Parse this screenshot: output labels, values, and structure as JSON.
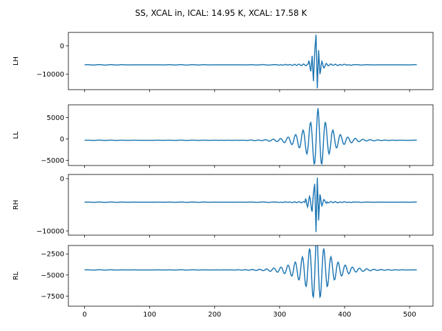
{
  "title": "SS, XCAL in, ICAL: 14.95 K, XCAL: 17.58 K",
  "chart_data": [
    {
      "type": "line",
      "ylabel": "LH",
      "xlabel": "",
      "xlim": [
        -25,
        536
      ],
      "ylim": [
        -15500,
        4800
      ],
      "xticks": [
        0,
        100,
        200,
        300,
        400,
        500
      ],
      "yticks": [
        0,
        -10000
      ],
      "ytick_labels": [
        "0",
        "−10000"
      ],
      "show_xtick_labels": false,
      "color": "#1f77b4",
      "series": {
        "baseline": -6700,
        "peak_x": 356,
        "spikes": [
          [
            345,
            -5200
          ],
          [
            348,
            -9000
          ],
          [
            350,
            -3500
          ],
          [
            352,
            -12500
          ],
          [
            354,
            -2000
          ],
          [
            356,
            4000
          ],
          [
            358,
            -15000
          ],
          [
            360,
            -1500
          ],
          [
            362,
            -10000
          ],
          [
            365,
            -5500
          ],
          [
            368,
            -7800
          ],
          [
            372,
            -6200
          ]
        ],
        "ripple_amp": 350,
        "ripple_width": 60
      }
    },
    {
      "type": "line",
      "ylabel": "LL",
      "xlabel": "",
      "xlim": [
        -25,
        536
      ],
      "ylim": [
        -6200,
        8000
      ],
      "xticks": [
        0,
        100,
        200,
        300,
        400,
        500
      ],
      "yticks": [
        5000,
        0,
        -5000
      ],
      "ytick_labels": [
        "5000",
        "0",
        "−5000"
      ],
      "show_xtick_labels": false,
      "color": "#1f77b4",
      "series": {
        "baseline": -300,
        "peak_x": 359,
        "wave_amp": 7500,
        "wave_period": 11.5,
        "wave_decay": 20,
        "ripple_amp": 120
      }
    },
    {
      "type": "line",
      "ylabel": "RH",
      "xlabel": "",
      "xlim": [
        -25,
        536
      ],
      "ylim": [
        -10800,
        800
      ],
      "xticks": [
        0,
        100,
        200,
        300,
        400,
        500
      ],
      "yticks": [
        0,
        -10000
      ],
      "ytick_labels": [
        "0",
        "−10000"
      ],
      "show_xtick_labels": false,
      "color": "#1f77b4",
      "series": {
        "baseline": -4500,
        "peak_x": 357,
        "spikes": [
          [
            340,
            -3800
          ],
          [
            343,
            -5400
          ],
          [
            346,
            -3400
          ],
          [
            350,
            -6300
          ],
          [
            352,
            -2800
          ],
          [
            354,
            -1000
          ],
          [
            356,
            -10200
          ],
          [
            358,
            200
          ],
          [
            360,
            -8000
          ],
          [
            362,
            -3000
          ],
          [
            365,
            -5200
          ],
          [
            368,
            -4000
          ],
          [
            372,
            -4700
          ]
        ],
        "ripple_amp": 150,
        "ripple_width": 60
      }
    },
    {
      "type": "line",
      "ylabel": "RL",
      "xlabel": "",
      "xlim": [
        -25,
        536
      ],
      "ylim": [
        -8700,
        -1500
      ],
      "xticks": [
        0,
        100,
        200,
        300,
        400,
        500
      ],
      "yticks": [
        -2500,
        -5000,
        -7500
      ],
      "ytick_labels": [
        "−2500",
        "−5000",
        "−7500"
      ],
      "xtick_labels": [
        "0",
        "100",
        "200",
        "300",
        "400",
        "500"
      ],
      "show_xtick_labels": true,
      "color": "#1f77b4",
      "series": {
        "baseline": -4400,
        "peak_x": 357,
        "wave_amp": 4200,
        "wave_period": 11,
        "wave_decay": 22,
        "ripple_amp": 60
      }
    }
  ]
}
